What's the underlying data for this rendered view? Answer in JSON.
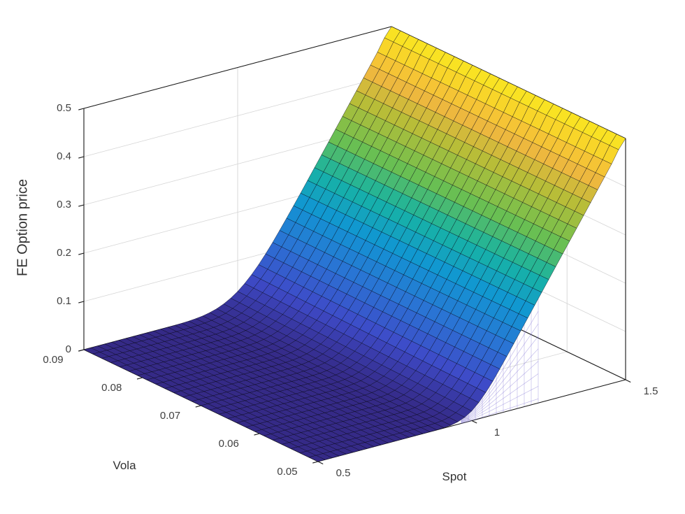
{
  "figure": {
    "background": "#ffffff"
  },
  "chart_data": {
    "type": "surface",
    "title": "",
    "xlabel": "Spot",
    "ylabel": "Vola",
    "zlabel": "FE Option price",
    "xlim": [
      0.5,
      1.5
    ],
    "ylim": [
      0.05,
      0.09
    ],
    "zlim": [
      0,
      0.5
    ],
    "x_ticks": [
      "0.5",
      "1",
      "1.5"
    ],
    "y_ticks": [
      "0.05",
      "0.06",
      "0.07",
      "0.08",
      "0.09"
    ],
    "z_ticks": [
      "0",
      "0.1",
      "0.2",
      "0.3",
      "0.4",
      "0.5"
    ],
    "view": {
      "azimuth": -37.5,
      "elevation": 30
    },
    "grid": true,
    "spot": [
      0.5,
      0.55,
      0.6,
      0.65,
      0.7,
      0.75,
      0.8,
      0.85,
      0.9,
      0.95,
      1.0,
      1.05,
      1.1,
      1.15,
      1.2,
      1.25,
      1.3,
      1.35,
      1.4,
      1.45,
      1.5
    ],
    "vola": [
      0.05,
      0.06,
      0.07,
      0.08,
      0.09
    ],
    "z": [
      [
        0,
        0,
        0,
        0,
        0,
        0,
        0,
        0,
        0.0004,
        0.0042,
        0.0199,
        0.0542,
        0.1004,
        0.15,
        0.2,
        0.25,
        0.3,
        0.35,
        0.4,
        0.45,
        0.5
      ],
      [
        0,
        0,
        0,
        0,
        0,
        0,
        0,
        0.0001,
        0.0012,
        0.0068,
        0.0239,
        0.0568,
        0.1014,
        0.1501,
        0.2,
        0.25,
        0.3,
        0.35,
        0.4,
        0.45,
        0.5
      ],
      [
        0,
        0,
        0,
        0,
        0,
        0,
        0,
        0.0004,
        0.0024,
        0.0098,
        0.0279,
        0.0597,
        0.1025,
        0.1504,
        0.2,
        0.25,
        0.3,
        0.35,
        0.4,
        0.45,
        0.5
      ],
      [
        0,
        0,
        0,
        0,
        0,
        0,
        0.0002,
        0.0009,
        0.0041,
        0.013,
        0.0319,
        0.063,
        0.104,
        0.1509,
        0.2002,
        0.25,
        0.3,
        0.35,
        0.4,
        0.45,
        0.5
      ],
      [
        0,
        0,
        0,
        0,
        0,
        0.0001,
        0.0004,
        0.0018,
        0.006,
        0.0163,
        0.0359,
        0.0663,
        0.106,
        0.1521,
        0.2004,
        0.2501,
        0.3,
        0.35,
        0.4,
        0.45,
        0.5
      ]
    ],
    "colormap": {
      "name": "parula",
      "stops": [
        [
          0.0,
          "#352a87"
        ],
        [
          0.12,
          "#3e4bc8"
        ],
        [
          0.25,
          "#2a74d4"
        ],
        [
          0.38,
          "#1196d2"
        ],
        [
          0.5,
          "#17b3a3"
        ],
        [
          0.62,
          "#6ec04f"
        ],
        [
          0.75,
          "#b8bd38"
        ],
        [
          0.85,
          "#f2b73f"
        ],
        [
          0.93,
          "#f8d32a"
        ],
        [
          1.0,
          "#f9e821"
        ]
      ]
    },
    "style": {
      "mesh_edge_color": "rgba(5,5,20,0.78)",
      "grid_color": "#d6d6d6",
      "axis_color": "#161616",
      "tick_label_color": "#3f3f3f",
      "underside_mesh_color": "rgba(115,100,210,0.5)"
    }
  }
}
